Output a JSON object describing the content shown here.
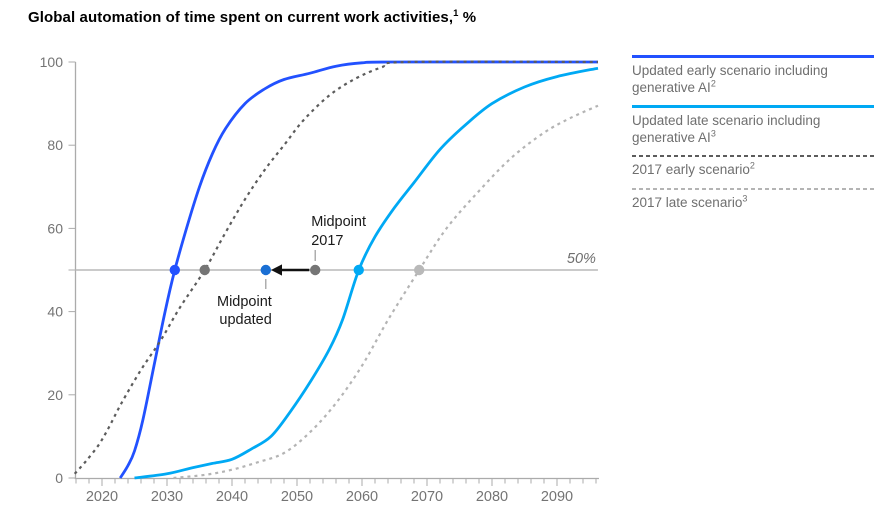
{
  "page": {
    "title_before": "Global automation of time spent on current work activities,",
    "title_sup": "1",
    "title_after": " %"
  },
  "legend": {
    "items": [
      {
        "label": "Updated early scenario including generative AI",
        "sup": "2",
        "color": "#2251ff",
        "style": "solid"
      },
      {
        "label": "Updated late scenario including generative AI",
        "sup": "3",
        "color": "#00a9f4",
        "style": "solid"
      },
      {
        "label": "2017 early scenario",
        "sup": "2",
        "color": "#5c5c5c",
        "style": "dashed"
      },
      {
        "label": "2017 late scenario",
        "sup": "3",
        "color": "#b4b4b4",
        "style": "dashed"
      }
    ]
  },
  "chart_data": {
    "type": "line",
    "title": "Global automation of time spent on current work activities, %",
    "xlabel": "",
    "ylabel": "",
    "xlim": [
      2015.8,
      2096.3
    ],
    "ylim": [
      0,
      100
    ],
    "grid": "off",
    "legend_position": "right",
    "x_ticks": {
      "labeled": [
        2020,
        2030,
        2040,
        2050,
        2060,
        2070,
        2080,
        2090
      ],
      "minor_start": 2016,
      "minor_end": 2096,
      "minor_step": 2
    },
    "y_ticks": {
      "labeled": [
        0,
        20,
        40,
        60,
        80,
        100
      ],
      "unlabeled": [
        50
      ]
    },
    "reference_line": {
      "value": 50,
      "label": "50%",
      "color": "#b9b9b9"
    },
    "axis_color": "#ababab",
    "tick_label_color": "#747474",
    "annotation_text_color": "#1a1a1a",
    "series": [
      {
        "name": "Updated early scenario including generative AI",
        "sup": "2",
        "color": "#2251ff",
        "dash": "solid",
        "width": 2.8,
        "points": [
          [
            2022.8,
            0
          ],
          [
            2024,
            3
          ],
          [
            2025,
            6.5
          ],
          [
            2026.3,
            14
          ],
          [
            2028,
            27
          ],
          [
            2029.7,
            40
          ],
          [
            2031.2,
            50
          ],
          [
            2033,
            60
          ],
          [
            2035,
            70
          ],
          [
            2037,
            78
          ],
          [
            2039,
            84
          ],
          [
            2042,
            90
          ],
          [
            2045,
            93.5
          ],
          [
            2048,
            95.8
          ],
          [
            2052,
            97.3
          ],
          [
            2056,
            99
          ],
          [
            2060,
            99.8
          ],
          [
            2065,
            100
          ],
          [
            2096.3,
            100
          ]
        ],
        "dot": [
          2031.2,
          50
        ],
        "dot_color": "#2251ff"
      },
      {
        "name": "Updated late scenario including generative AI",
        "sup": "3",
        "color": "#00a9f4",
        "dash": "solid",
        "width": 2.8,
        "points": [
          [
            2025,
            0
          ],
          [
            2030,
            1
          ],
          [
            2034,
            2.5
          ],
          [
            2037,
            3.5
          ],
          [
            2040,
            4.5
          ],
          [
            2043,
            7
          ],
          [
            2046,
            10
          ],
          [
            2049,
            16
          ],
          [
            2052,
            23
          ],
          [
            2055,
            31
          ],
          [
            2057,
            38
          ],
          [
            2059.5,
            50
          ],
          [
            2062,
            58
          ],
          [
            2065,
            65
          ],
          [
            2068,
            71
          ],
          [
            2072,
            79
          ],
          [
            2076,
            85
          ],
          [
            2080,
            90
          ],
          [
            2085,
            94
          ],
          [
            2090,
            96.5
          ],
          [
            2096.3,
            98.5
          ]
        ],
        "dot": [
          2059.5,
          50
        ],
        "dot_color": "#00a9f4"
      },
      {
        "name": "2017 early scenario",
        "sup": "2",
        "color": "#5c5c5c",
        "dash": "dashed",
        "width": 2.2,
        "points": [
          [
            2015.8,
            1
          ],
          [
            2017.5,
            4
          ],
          [
            2019.5,
            8
          ],
          [
            2021,
            12
          ],
          [
            2023,
            18
          ],
          [
            2026,
            26
          ],
          [
            2029,
            33
          ],
          [
            2032,
            41
          ],
          [
            2035.8,
            50
          ],
          [
            2039,
            59
          ],
          [
            2042,
            67
          ],
          [
            2045,
            74
          ],
          [
            2048,
            80
          ],
          [
            2051,
            86
          ],
          [
            2055,
            92
          ],
          [
            2059,
            96
          ],
          [
            2063,
            98.7
          ],
          [
            2067,
            100
          ],
          [
            2096.3,
            100
          ]
        ],
        "dot": [
          2035.8,
          50
        ],
        "dot_color": "#757575"
      },
      {
        "name": "2017 late scenario",
        "sup": "3",
        "color": "#b4b4b4",
        "dash": "dashed",
        "width": 2.2,
        "points": [
          [
            2031,
            0
          ],
          [
            2036,
            0.8
          ],
          [
            2040,
            2
          ],
          [
            2044,
            3.8
          ],
          [
            2048,
            6
          ],
          [
            2052,
            11
          ],
          [
            2056,
            18
          ],
          [
            2060,
            27
          ],
          [
            2064,
            38
          ],
          [
            2068.8,
            50
          ],
          [
            2073,
            60
          ],
          [
            2078,
            69
          ],
          [
            2083,
            77
          ],
          [
            2088,
            83
          ],
          [
            2092,
            86.5
          ],
          [
            2096.3,
            89.5
          ]
        ],
        "dot": [
          2068.8,
          50
        ],
        "dot_color": "#b9b9b9"
      }
    ],
    "midpoint_markers": [
      {
        "label": "Midpoint updated",
        "lines": [
          "Midpoint",
          "updated"
        ],
        "year": 2045.2,
        "value": 50,
        "color": "#1a6fd4",
        "label_position": "below"
      },
      {
        "label": "Midpoint 2017",
        "lines": [
          "Midpoint",
          "2017"
        ],
        "year": 2052.8,
        "value": 50,
        "color": "#757575",
        "label_position": "above"
      }
    ],
    "arrow": {
      "from_year": 2051.9,
      "to_year": 2046.0,
      "value": 50,
      "color": "#111111"
    }
  }
}
